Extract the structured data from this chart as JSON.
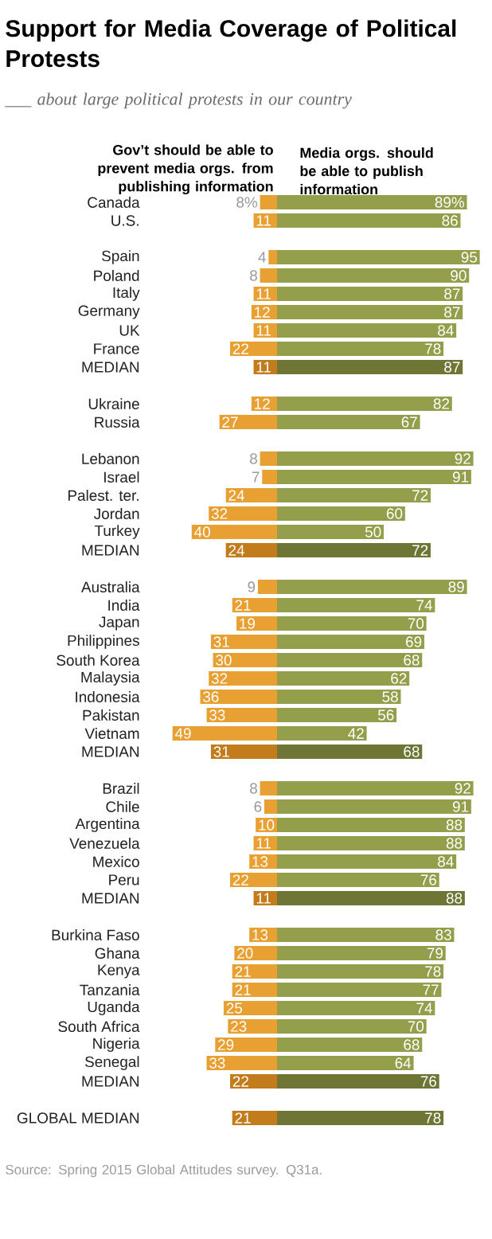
{
  "chart_data": [
    {
      "type": "bar",
      "orientation": "horizontal",
      "title": "Support for Media Coverage of Political Protests",
      "subtitle": "___ about large political protests in our country",
      "categories": [
        "Canada",
        "U.S.",
        null,
        "Spain",
        "Poland",
        "Italy",
        "Germany",
        "UK",
        "France",
        "MEDIAN",
        null,
        "Ukraine",
        "Russia",
        null,
        "Lebanon",
        "Israel",
        "Palest. ter.",
        "Jordan",
        "Turkey",
        "MEDIAN",
        null,
        "Australia",
        "India",
        "Japan",
        "Philippines",
        "South Korea",
        "Malaysia",
        "Indonesia",
        "Pakistan",
        "Vietnam",
        "MEDIAN",
        null,
        "Brazil",
        "Chile",
        "Argentina",
        "Venezuela",
        "Mexico",
        "Peru",
        "MEDIAN",
        null,
        "Burkina Faso",
        "Ghana",
        "Kenya",
        "Tanzania",
        "Uganda",
        "South Africa",
        "Nigeria",
        "Senegal",
        "MEDIAN",
        null,
        "GLOBAL MEDIAN"
      ],
      "series": [
        {
          "name": "Gov’t should be able to prevent media orgs. from publishing information",
          "values": [
            8,
            11,
            null,
            4,
            8,
            11,
            12,
            11,
            22,
            11,
            null,
            12,
            27,
            null,
            8,
            7,
            24,
            32,
            40,
            24,
            null,
            9,
            21,
            19,
            31,
            30,
            32,
            36,
            33,
            49,
            31,
            null,
            8,
            6,
            10,
            11,
            13,
            22,
            11,
            null,
            13,
            20,
            21,
            21,
            25,
            23,
            29,
            33,
            22,
            null,
            21
          ],
          "value_labels": [
            "8%",
            "11",
            null,
            "4",
            "8",
            "11",
            "12",
            "11",
            "22",
            "11",
            null,
            "12",
            "27",
            null,
            "8",
            "7",
            "24",
            "32",
            "40",
            "24",
            null,
            "9",
            "21",
            "19",
            "31",
            "30",
            "32",
            "36",
            "33",
            "49",
            "31",
            null,
            "8",
            "6",
            "10",
            "11",
            "13",
            "22",
            "11",
            null,
            "13",
            "20",
            "21",
            "21",
            "25",
            "23",
            "29",
            "33",
            "22",
            null,
            "21"
          ],
          "colors": [
            "#e9a032",
            "#e9a032",
            null,
            "#e9a032",
            "#e9a032",
            "#e9a032",
            "#e9a032",
            "#e9a032",
            "#e9a032",
            "#c27c1b",
            null,
            "#e9a032",
            "#e9a032",
            null,
            "#e9a032",
            "#e9a032",
            "#e9a032",
            "#e9a032",
            "#e9a032",
            "#c27c1b",
            null,
            "#e9a032",
            "#e9a032",
            "#e9a032",
            "#e9a032",
            "#e9a032",
            "#e9a032",
            "#e9a032",
            "#e9a032",
            "#e9a032",
            "#c27c1b",
            null,
            "#e9a032",
            "#e9a032",
            "#e9a032",
            "#e9a032",
            "#e9a032",
            "#e9a032",
            "#c27c1b",
            null,
            "#e9a032",
            "#e9a032",
            "#e9a032",
            "#e9a032",
            "#e9a032",
            "#e9a032",
            "#e9a032",
            "#e9a032",
            "#c27c1b",
            null,
            "#c27c1b"
          ]
        }
      ]
    },
    {
      "type": "bar",
      "orientation": "horizontal",
      "annotations": [
        "Source: Spring 2015 Global Attitudes survey. Q31a."
      ],
      "categories": [
        null,
        null,
        null,
        null,
        null,
        null,
        null,
        null,
        null,
        null,
        null,
        null,
        null,
        null,
        null,
        null,
        null,
        null,
        null,
        null,
        null,
        null,
        null,
        null,
        null,
        null,
        null,
        null,
        null,
        null,
        null,
        null,
        null,
        null,
        null,
        null,
        null,
        null,
        null,
        null,
        null,
        null,
        null,
        null,
        null,
        null,
        null,
        null,
        null,
        null,
        null
      ],
      "series": [
        {
          "name": "Media orgs. should be able to publish information",
          "values": [
            89,
            86,
            null,
            95,
            90,
            87,
            87,
            84,
            78,
            87,
            null,
            82,
            67,
            null,
            92,
            91,
            72,
            60,
            50,
            72,
            null,
            89,
            74,
            70,
            69,
            68,
            62,
            58,
            56,
            42,
            68,
            null,
            92,
            91,
            88,
            88,
            84,
            76,
            88,
            null,
            83,
            79,
            78,
            77,
            74,
            70,
            68,
            64,
            76,
            null,
            78
          ],
          "value_labels": [
            "89%",
            "86",
            null,
            "95",
            "90",
            "87",
            "87",
            "84",
            "78",
            "87",
            null,
            "82",
            "67",
            null,
            "92",
            "91",
            "72",
            "60",
            "50",
            "72",
            null,
            "89",
            "74",
            "70",
            "69",
            "68",
            "62",
            "58",
            "56",
            "42",
            "68",
            null,
            "92",
            "91",
            "88",
            "88",
            "84",
            "76",
            "88",
            null,
            "83",
            "79",
            "78",
            "77",
            "74",
            "70",
            "68",
            "64",
            "76",
            null,
            "78"
          ],
          "colors": [
            "#959e4a",
            "#959e4a",
            null,
            "#959e4a",
            "#959e4a",
            "#959e4a",
            "#959e4a",
            "#959e4a",
            "#959e4a",
            "#6e7535",
            null,
            "#959e4a",
            "#959e4a",
            null,
            "#959e4a",
            "#959e4a",
            "#959e4a",
            "#959e4a",
            "#959e4a",
            "#6e7535",
            null,
            "#959e4a",
            "#959e4a",
            "#959e4a",
            "#959e4a",
            "#959e4a",
            "#959e4a",
            "#959e4a",
            "#959e4a",
            "#959e4a",
            "#6e7535",
            null,
            "#959e4a",
            "#959e4a",
            "#959e4a",
            "#959e4a",
            "#959e4a",
            "#959e4a",
            "#6e7535",
            null,
            "#959e4a",
            "#959e4a",
            "#959e4a",
            "#959e4a",
            "#959e4a",
            "#959e4a",
            "#959e4a",
            "#959e4a",
            "#6e7535",
            null,
            "#6e7535"
          ]
        }
      ]
    }
  ]
}
